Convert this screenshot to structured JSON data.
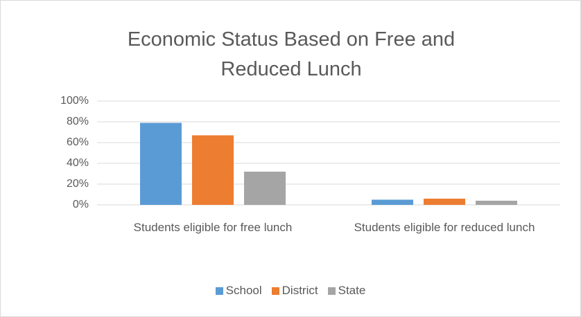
{
  "chart_data": {
    "type": "bar",
    "title": "Economic Status Based on Free and Reduced Lunch",
    "categories": [
      "Students eligible for free lunch",
      "Students eligible for reduced lunch"
    ],
    "series": [
      {
        "name": "School",
        "color": "#5b9bd5",
        "values": [
          79,
          5
        ]
      },
      {
        "name": "District",
        "color": "#ed7d31",
        "values": [
          67,
          6
        ]
      },
      {
        "name": "State",
        "color": "#a5a5a5",
        "values": [
          32,
          4
        ]
      }
    ],
    "ylim": [
      0,
      100
    ],
    "yticks": [
      {
        "value": 0,
        "label": "0%"
      },
      {
        "value": 20,
        "label": "20%"
      },
      {
        "value": 40,
        "label": "40%"
      },
      {
        "value": 60,
        "label": "60%"
      },
      {
        "value": 80,
        "label": "80%"
      },
      {
        "value": 100,
        "label": "100%"
      }
    ],
    "grid": true,
    "legend": "bottom"
  }
}
